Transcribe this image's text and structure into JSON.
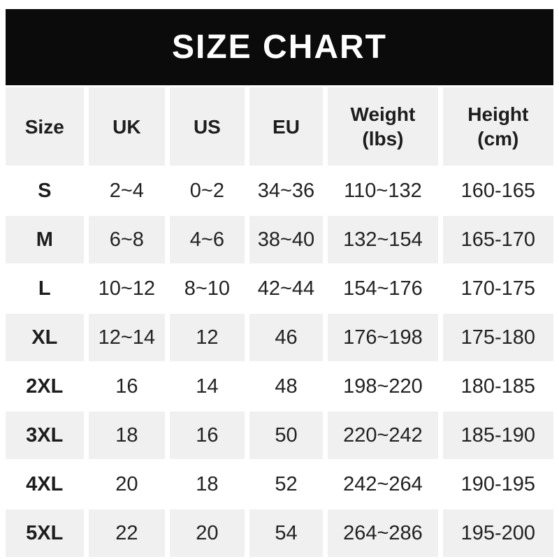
{
  "banner": {
    "title": "SIZE CHART"
  },
  "colors": {
    "banner_bg": "#0b0b0b",
    "banner_text": "#ffffff",
    "alt_row_bg": "#f1f0f0",
    "row_bg": "#ffffff",
    "text": "#222222"
  },
  "table": {
    "columns": [
      {
        "label": "Size",
        "sublabel": ""
      },
      {
        "label": "UK",
        "sublabel": ""
      },
      {
        "label": "US",
        "sublabel": ""
      },
      {
        "label": "EU",
        "sublabel": ""
      },
      {
        "label": "Weight",
        "sublabel": "(lbs)"
      },
      {
        "label": "Height",
        "sublabel": "(cm)"
      }
    ],
    "rows": [
      {
        "size": "S",
        "uk": "2~4",
        "us": "0~2",
        "eu": "34~36",
        "weight": "110~132",
        "height": "160-165"
      },
      {
        "size": "M",
        "uk": "6~8",
        "us": "4~6",
        "eu": "38~40",
        "weight": "132~154",
        "height": "165-170"
      },
      {
        "size": "L",
        "uk": "10~12",
        "us": "8~10",
        "eu": "42~44",
        "weight": "154~176",
        "height": "170-175"
      },
      {
        "size": "XL",
        "uk": "12~14",
        "us": "12",
        "eu": "46",
        "weight": "176~198",
        "height": "175-180"
      },
      {
        "size": "2XL",
        "uk": "16",
        "us": "14",
        "eu": "48",
        "weight": "198~220",
        "height": "180-185"
      },
      {
        "size": "3XL",
        "uk": "18",
        "us": "16",
        "eu": "50",
        "weight": "220~242",
        "height": "185-190"
      },
      {
        "size": "4XL",
        "uk": "20",
        "us": "18",
        "eu": "52",
        "weight": "242~264",
        "height": "190-195"
      },
      {
        "size": "5XL",
        "uk": "22",
        "us": "20",
        "eu": "54",
        "weight": "264~286",
        "height": "195-200"
      }
    ]
  }
}
